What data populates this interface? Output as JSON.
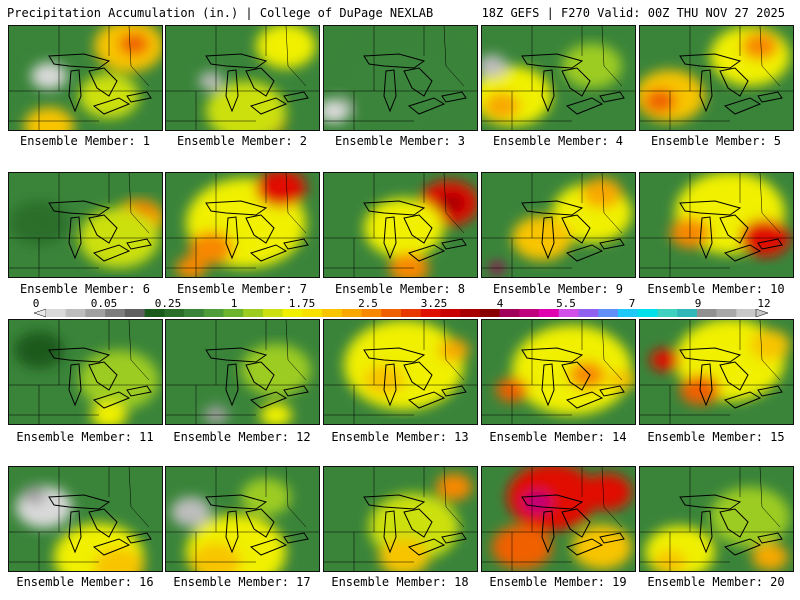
{
  "header": {
    "left": "Precipitation Accumulation (in.) | College of DuPage NEXLAB",
    "right": "18Z GEFS | F270 Valid: 00Z THU NOV 27 2025"
  },
  "colorbar": {
    "labels": [
      "0",
      "0.05",
      "0.25",
      "1",
      "1.75",
      "2.5",
      "3.25",
      "4",
      "5.5",
      "7",
      "9",
      "12"
    ],
    "colors": [
      "#d9d9d9",
      "#bdbdbd",
      "#a0a0a0",
      "#7d7d7d",
      "#5f5f5f",
      "#1a5a1a",
      "#2a6e2a",
      "#3a843a",
      "#4e9c3a",
      "#6cb42c",
      "#9ccc20",
      "#cce010",
      "#f0f000",
      "#f8e000",
      "#f8c400",
      "#f8a800",
      "#f88800",
      "#f06000",
      "#e83800",
      "#e01000",
      "#c80000",
      "#a80000",
      "#880000",
      "#a0005a",
      "#c0007c",
      "#e000b0",
      "#d050e8",
      "#9060f0",
      "#6090f8",
      "#20c8f8",
      "#00e0e8",
      "#40d0c0",
      "#30b8b8",
      "#909090",
      "#a8a8a8",
      "#c8c8c8"
    ]
  },
  "members": [
    {
      "label": "Ensemble Member: 1",
      "blobs": [
        [
          "#f8c400",
          120,
          20,
          35
        ],
        [
          "#f06000",
          125,
          18,
          15
        ],
        [
          "#d9d9d9",
          40,
          50,
          18
        ],
        [
          "#f8c400",
          40,
          100,
          25
        ],
        [
          "#cce010",
          100,
          70,
          30
        ]
      ]
    },
    {
      "label": "Ensemble Member: 2",
      "blobs": [
        [
          "#f0f000",
          120,
          20,
          30
        ],
        [
          "#f88800",
          100,
          95,
          20
        ],
        [
          "#cce010",
          80,
          85,
          40
        ],
        [
          "#bdbdbd",
          45,
          55,
          12
        ]
      ]
    },
    {
      "label": "Ensemble Member: 3",
      "blobs": [
        [
          "#d9d9d9",
          10,
          85,
          16
        ],
        [
          "#a0a0a0",
          45,
          50,
          14
        ],
        [
          "#3a843a",
          80,
          60,
          60
        ]
      ]
    },
    {
      "label": "Ensemble Member: 4",
      "blobs": [
        [
          "#f0f000",
          30,
          70,
          40
        ],
        [
          "#f8a800",
          20,
          80,
          18
        ],
        [
          "#9ccc20",
          110,
          40,
          30
        ],
        [
          "#bdbdbd",
          10,
          40,
          15
        ]
      ]
    },
    {
      "label": "Ensemble Member: 5",
      "blobs": [
        [
          "#f8c400",
          30,
          70,
          35
        ],
        [
          "#f06000",
          20,
          75,
          16
        ],
        [
          "#f0f000",
          110,
          30,
          40
        ],
        [
          "#f88800",
          120,
          20,
          18
        ]
      ]
    },
    {
      "label": "Ensemble Member: 6",
      "blobs": [
        [
          "#f8a800",
          130,
          45,
          25
        ],
        [
          "#f06000",
          132,
          40,
          12
        ],
        [
          "#cce010",
          110,
          65,
          40
        ],
        [
          "#2a6e2a",
          30,
          50,
          30
        ]
      ]
    },
    {
      "label": "Ensemble Member: 7",
      "blobs": [
        [
          "#f0f000",
          80,
          50,
          60
        ],
        [
          "#e01000",
          115,
          15,
          25
        ],
        [
          "#f88800",
          45,
          75,
          22
        ],
        [
          "#f88800",
          25,
          95,
          15
        ]
      ]
    },
    {
      "label": "Ensemble Member: 8",
      "blobs": [
        [
          "#e01000",
          125,
          30,
          30
        ],
        [
          "#a80000",
          128,
          30,
          14
        ],
        [
          "#f0f000",
          80,
          55,
          40
        ],
        [
          "#f88800",
          85,
          95,
          20
        ]
      ]
    },
    {
      "label": "Ensemble Member: 9",
      "blobs": [
        [
          "#f0f000",
          110,
          40,
          40
        ],
        [
          "#f8c400",
          60,
          65,
          30
        ],
        [
          "#a0005a",
          15,
          95,
          8
        ],
        [
          "#f8a800",
          120,
          20,
          20
        ]
      ]
    },
    {
      "label": "Ensemble Member: 10",
      "blobs": [
        [
          "#f0f000",
          90,
          40,
          55
        ],
        [
          "#e01000",
          125,
          65,
          25
        ],
        [
          "#f88800",
          50,
          60,
          20
        ]
      ]
    },
    {
      "label": "Ensemble Member: 11",
      "blobs": [
        [
          "#9ccc20",
          110,
          60,
          40
        ],
        [
          "#f0f000",
          100,
          95,
          18
        ],
        [
          "#1a5a1a",
          30,
          30,
          25
        ]
      ]
    },
    {
      "label": "Ensemble Member: 12",
      "blobs": [
        [
          "#9ccc20",
          110,
          50,
          35
        ],
        [
          "#f0f000",
          110,
          95,
          16
        ],
        [
          "#a0a0a0",
          50,
          95,
          12
        ]
      ]
    },
    {
      "label": "Ensemble Member: 13",
      "blobs": [
        [
          "#f0f000",
          80,
          45,
          60
        ],
        [
          "#f8c400",
          60,
          60,
          20
        ],
        [
          "#f8a800",
          130,
          30,
          15
        ]
      ]
    },
    {
      "label": "Ensemble Member: 14",
      "blobs": [
        [
          "#f0f000",
          90,
          50,
          60
        ],
        [
          "#f06000",
          30,
          70,
          16
        ],
        [
          "#f88800",
          105,
          55,
          18
        ],
        [
          "#f8c400",
          140,
          60,
          14
        ]
      ]
    },
    {
      "label": "Ensemble Member: 15",
      "blobs": [
        [
          "#f0f000",
          90,
          40,
          55
        ],
        [
          "#e01000",
          25,
          40,
          15
        ],
        [
          "#f06000",
          60,
          70,
          20
        ],
        [
          "#f8c400",
          130,
          25,
          20
        ]
      ]
    },
    {
      "label": "Ensemble Member: 16",
      "blobs": [
        [
          "#d9d9d9",
          35,
          40,
          28
        ],
        [
          "#a0a0a0",
          25,
          28,
          12
        ],
        [
          "#f0f000",
          90,
          90,
          45
        ],
        [
          "#f8c400",
          110,
          100,
          25
        ]
      ]
    },
    {
      "label": "Ensemble Member: 17",
      "blobs": [
        [
          "#bdbdbd",
          25,
          45,
          20
        ],
        [
          "#f0f000",
          70,
          85,
          50
        ],
        [
          "#f8c400",
          50,
          95,
          25
        ],
        [
          "#9ccc20",
          100,
          30,
          25
        ]
      ]
    },
    {
      "label": "Ensemble Member: 18",
      "blobs": [
        [
          "#cce010",
          90,
          60,
          45
        ],
        [
          "#f8c400",
          80,
          90,
          25
        ],
        [
          "#f88800",
          130,
          20,
          18
        ]
      ]
    },
    {
      "label": "Ensemble Member: 19",
      "blobs": [
        [
          "#e01000",
          70,
          30,
          45
        ],
        [
          "#c0007c",
          55,
          35,
          14
        ],
        [
          "#e01000",
          125,
          25,
          25
        ],
        [
          "#f06000",
          40,
          80,
          30
        ],
        [
          "#f8c400",
          120,
          80,
          30
        ]
      ]
    },
    {
      "label": "Ensemble Member: 20",
      "blobs": [
        [
          "#f0f000",
          40,
          85,
          35
        ],
        [
          "#f8c400",
          30,
          95,
          16
        ],
        [
          "#9ccc20",
          110,
          50,
          40
        ],
        [
          "#f8a800",
          130,
          90,
          18
        ]
      ]
    }
  ]
}
